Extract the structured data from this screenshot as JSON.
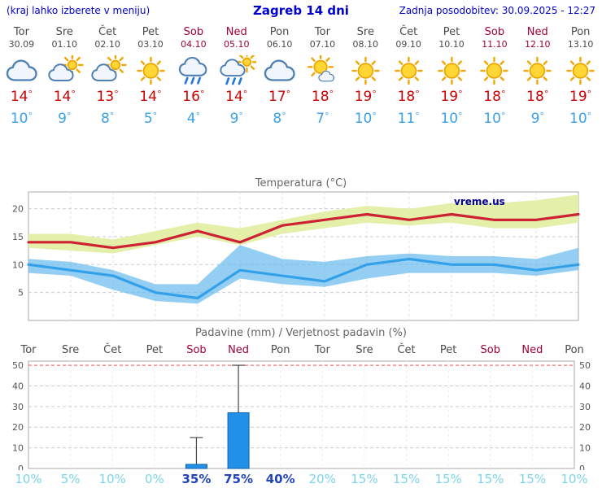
{
  "header": {
    "left_note": "(kraj lahko izberete v meniju)",
    "title": "Zagreb 14 dni",
    "last_update": "Zadnja posodobitev: 30.09.2025 - 12:27"
  },
  "colors": {
    "accent_blue": "#0000cc",
    "weekend_red": "#a00038",
    "temp_max_red": "#cc2233",
    "temp_min_blue": "#33a0e8",
    "band_yellow": "#e4efaa",
    "band_blue": "#66bbee",
    "bar_blue": "#2090e8",
    "prob_light": "#7cd4e8",
    "prob_dark": "#2244bb"
  },
  "days": [
    {
      "name": "Tor",
      "date": "30.09",
      "weekend": false,
      "icon": "cloudy",
      "tmax": 14,
      "tmin": 10
    },
    {
      "name": "Sre",
      "date": "01.10",
      "weekend": false,
      "icon": "partly",
      "tmax": 14,
      "tmin": 9
    },
    {
      "name": "Čet",
      "date": "02.10",
      "weekend": false,
      "icon": "partly",
      "tmax": 13,
      "tmin": 8
    },
    {
      "name": "Pet",
      "date": "03.10",
      "weekend": false,
      "icon": "sunny",
      "tmax": 14,
      "tmin": 5
    },
    {
      "name": "Sob",
      "date": "04.10",
      "weekend": true,
      "icon": "rain",
      "tmax": 16,
      "tmin": 4
    },
    {
      "name": "Ned",
      "date": "05.10",
      "weekend": true,
      "icon": "showers",
      "tmax": 14,
      "tmin": 9
    },
    {
      "name": "Pon",
      "date": "06.10",
      "weekend": false,
      "icon": "cloudy",
      "tmax": 17,
      "tmin": 8
    },
    {
      "name": "Tor",
      "date": "07.10",
      "weekend": false,
      "icon": "mostly-sunny",
      "tmax": 18,
      "tmin": 7
    },
    {
      "name": "Sre",
      "date": "08.10",
      "weekend": false,
      "icon": "sunny",
      "tmax": 19,
      "tmin": 10
    },
    {
      "name": "Čet",
      "date": "09.10",
      "weekend": false,
      "icon": "sunny",
      "tmax": 18,
      "tmin": 11
    },
    {
      "name": "Pet",
      "date": "10.10",
      "weekend": false,
      "icon": "sunny",
      "tmax": 19,
      "tmin": 10
    },
    {
      "name": "Sob",
      "date": "11.10",
      "weekend": true,
      "icon": "sunny",
      "tmax": 18,
      "tmin": 10
    },
    {
      "name": "Ned",
      "date": "12.10",
      "weekend": true,
      "icon": "sunny",
      "tmax": 18,
      "tmin": 9
    },
    {
      "name": "Pon",
      "date": "13.10",
      "weekend": false,
      "icon": "sunny",
      "tmax": 19,
      "tmin": 10
    }
  ],
  "chart_data": [
    {
      "type": "line",
      "title": "Temperatura (°C)",
      "watermark": "vreme.us",
      "ylim": [
        0,
        23
      ],
      "yticks": [
        5,
        10,
        15,
        20
      ],
      "grid": true,
      "series": [
        {
          "name": "tmax",
          "color": "#cc2233",
          "values": [
            14,
            14,
            13,
            14,
            16,
            14,
            17,
            18,
            19,
            18,
            19,
            18,
            18,
            19
          ]
        },
        {
          "name": "tmin",
          "color": "#33a0e8",
          "values": [
            10,
            9,
            8,
            5,
            4,
            9,
            8,
            7,
            10,
            11,
            10,
            10,
            9,
            10
          ]
        }
      ],
      "bands": [
        {
          "name": "tmax-range",
          "color": "#e4efaa",
          "opacity": 1,
          "upper": [
            15.5,
            15.5,
            14.5,
            16,
            17.5,
            16.5,
            18,
            19.5,
            20.5,
            20,
            21,
            21,
            21.5,
            22.5
          ],
          "lower": [
            13,
            12.5,
            12,
            13.5,
            15,
            13.5,
            15.5,
            16.5,
            17.5,
            17,
            17.5,
            16.5,
            16.5,
            17.5
          ]
        },
        {
          "name": "tmin-range",
          "color": "#66bbee",
          "opacity": 0.7,
          "upper": [
            11,
            10.5,
            9,
            6.5,
            6.5,
            13.5,
            11,
            10.5,
            11.5,
            12,
            11.5,
            11.5,
            11,
            13
          ],
          "lower": [
            8.5,
            8,
            5.5,
            3.5,
            3,
            7.5,
            6.5,
            6,
            7.5,
            8.5,
            8.5,
            8.5,
            8,
            9
          ]
        }
      ]
    },
    {
      "type": "bar",
      "title": "Padavine (mm) / Verjetnost padavin (%)",
      "ylim": [
        0,
        52
      ],
      "yticks": [
        0,
        10,
        20,
        30,
        40,
        50
      ],
      "red_gridline": 50,
      "categories": [
        "Tor",
        "Sre",
        "Čet",
        "Pet",
        "Sob",
        "Ned",
        "Pon",
        "Tor",
        "Sre",
        "Čet",
        "Pet",
        "Sob",
        "Ned",
        "Pon"
      ],
      "weekend": [
        false,
        false,
        false,
        false,
        true,
        true,
        false,
        false,
        false,
        false,
        false,
        true,
        true,
        false
      ],
      "precip_mm": [
        0,
        0,
        0,
        0,
        2,
        27,
        0,
        0,
        0,
        0,
        0,
        0,
        0,
        0
      ],
      "precip_max_mm": [
        0,
        0,
        0,
        0,
        15,
        50,
        0,
        0,
        0,
        0,
        0,
        0,
        0,
        0
      ],
      "probabilities": [
        "10%",
        "5%",
        "10%",
        "0%",
        "35%",
        "75%",
        "40%",
        "20%",
        "15%",
        "15%",
        "15%",
        "15%",
        "15%",
        "10%"
      ],
      "prob_dark": [
        false,
        false,
        false,
        false,
        true,
        true,
        true,
        false,
        false,
        false,
        false,
        false,
        false,
        false
      ]
    }
  ]
}
